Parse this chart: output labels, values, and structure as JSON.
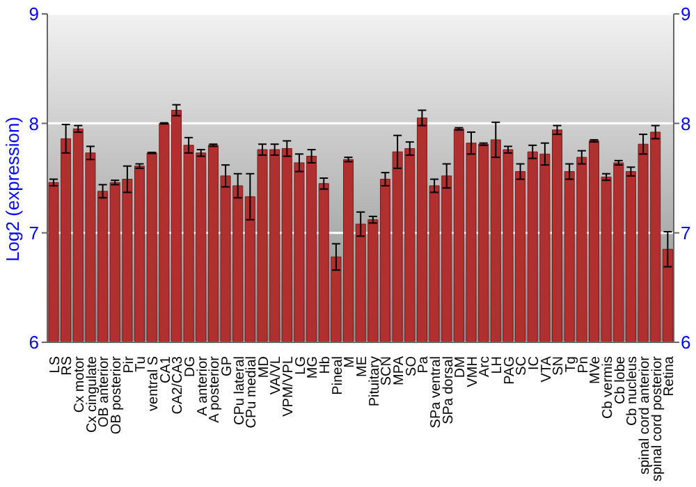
{
  "chart_data": {
    "type": "bar",
    "ylabel": "Log2 (expression)",
    "categories": [
      "LS",
      "RS",
      "Cx motor",
      "Cx cingulate",
      "OB anterior",
      "OB posterior",
      "Pir",
      "Tu",
      "ventral S",
      "CA1",
      "CA2/CA3",
      "DG",
      "A anterior",
      "A posterior",
      "GP",
      "CPu lateral",
      "CPu medial",
      "MD",
      "VA/VL",
      "VPM/VPL",
      "LG",
      "MG",
      "Hb",
      "Pineal",
      "M",
      "ME",
      "Pituitary",
      "SCN",
      "MPA",
      "SO",
      "Pa",
      "SPa ventral",
      "SPa dorsal",
      "DM",
      "VMH",
      "Arc",
      "LH",
      "PAG",
      "SC",
      "IC",
      "VTA",
      "SN",
      "Tg",
      "Pn",
      "MVe",
      "Cb vermis",
      "Cb lobe",
      "Cb nucleus",
      "spinal cord anterior",
      "spinal cord posterior",
      "Retina"
    ],
    "values": [
      7.46,
      7.86,
      7.95,
      7.73,
      7.38,
      7.46,
      7.49,
      7.61,
      7.73,
      8.0,
      8.12,
      7.8,
      7.73,
      7.8,
      7.52,
      7.43,
      7.33,
      7.76,
      7.76,
      7.77,
      7.64,
      7.7,
      7.45,
      6.78,
      7.67,
      7.08,
      7.12,
      7.49,
      7.74,
      7.77,
      8.05,
      7.43,
      7.52,
      7.95,
      7.82,
      7.81,
      7.85,
      7.76,
      7.56,
      7.74,
      7.72,
      7.94,
      7.56,
      7.69,
      7.84,
      7.51,
      7.64,
      7.56,
      7.81,
      7.92,
      6.85
    ],
    "errors": [
      0.03,
      0.13,
      0.03,
      0.06,
      0.06,
      0.02,
      0.12,
      0.02,
      0.005,
      0.005,
      0.05,
      0.07,
      0.03,
      0.01,
      0.1,
      0.11,
      0.21,
      0.05,
      0.05,
      0.07,
      0.08,
      0.06,
      0.05,
      0.12,
      0.02,
      0.11,
      0.03,
      0.06,
      0.15,
      0.06,
      0.07,
      0.06,
      0.11,
      0.01,
      0.1,
      0.01,
      0.16,
      0.03,
      0.07,
      0.06,
      0.1,
      0.04,
      0.07,
      0.06,
      0.01,
      0.03,
      0.02,
      0.04,
      0.09,
      0.06,
      0.16
    ],
    "color": "#b03030",
    "ylim": [
      6,
      9
    ],
    "yticks": [
      6,
      7,
      8,
      9
    ],
    "y2lim": [
      6,
      9
    ],
    "y2ticks": [
      6,
      7,
      8,
      9
    ],
    "grid": "y",
    "legend": false
  }
}
